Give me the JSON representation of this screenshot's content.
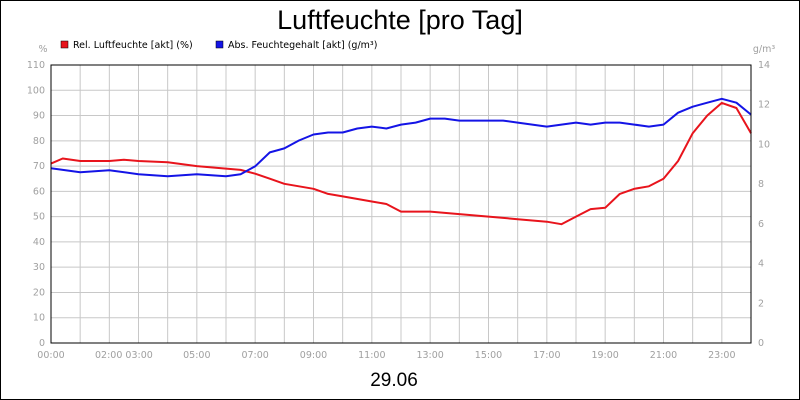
{
  "colors": {
    "rel_humidity": "#e8141c",
    "abs_humidity": "#1414e6",
    "grid": "#c8c8c8",
    "axis_text": "#a0a0a0"
  },
  "chart_data": {
    "type": "line",
    "title": "Luftfeuchte [pro Tag]",
    "date_label": "29.06",
    "left_unit": "%",
    "right_unit": "g/m³",
    "legend_position": "top-left",
    "grid": true,
    "x_ticks": [
      "00:00",
      "02:00 03:00",
      "05:00",
      "07:00",
      "09:00",
      "11:00",
      "13:00",
      "15:00",
      "17:00",
      "19:00",
      "21:00",
      "23:00"
    ],
    "x_tick_hours": [
      0,
      3,
      5,
      7,
      9,
      11,
      13,
      15,
      17,
      19,
      21,
      23
    ],
    "xlim": [
      0,
      24
    ],
    "y_left": {
      "lim": [
        0,
        110
      ],
      "ticks": [
        "0",
        "10",
        "20",
        "30",
        "40",
        "50",
        "60",
        "70",
        "80",
        "90",
        "100",
        "110"
      ]
    },
    "y_right": {
      "lim": [
        0,
        14
      ],
      "ticks": [
        "0",
        "2",
        "4",
        "6",
        "8",
        "10",
        "12",
        "14"
      ]
    },
    "series": [
      {
        "name": "Rel. Luftfeuchte [akt] (%)",
        "axis": "left",
        "points": [
          [
            0,
            71
          ],
          [
            0.4,
            73
          ],
          [
            1,
            72
          ],
          [
            2,
            72
          ],
          [
            2.5,
            72.5
          ],
          [
            3,
            72
          ],
          [
            4,
            71.5
          ],
          [
            5,
            70
          ],
          [
            6,
            69
          ],
          [
            6.5,
            68.5
          ],
          [
            7,
            67
          ],
          [
            7.5,
            65
          ],
          [
            8,
            63
          ],
          [
            8.5,
            62
          ],
          [
            9,
            61
          ],
          [
            9.5,
            59
          ],
          [
            10,
            58
          ],
          [
            11,
            56
          ],
          [
            11.5,
            55
          ],
          [
            12,
            52
          ],
          [
            12.5,
            52
          ],
          [
            13,
            52
          ],
          [
            14,
            51
          ],
          [
            15,
            50
          ],
          [
            16,
            49
          ],
          [
            17,
            48
          ],
          [
            17.5,
            47
          ],
          [
            18,
            50
          ],
          [
            18.5,
            53
          ],
          [
            19,
            53.5
          ],
          [
            19.5,
            59
          ],
          [
            20,
            61
          ],
          [
            20.5,
            62
          ],
          [
            21,
            65
          ],
          [
            21.5,
            72
          ],
          [
            22,
            83
          ],
          [
            22.5,
            90
          ],
          [
            23,
            95
          ],
          [
            23.5,
            93
          ],
          [
            24,
            83
          ]
        ]
      },
      {
        "name": "Abs. Feuchtegehalt [akt] (g/m³)",
        "axis": "right",
        "points": [
          [
            0,
            8.8
          ],
          [
            1,
            8.6
          ],
          [
            2,
            8.7
          ],
          [
            3,
            8.5
          ],
          [
            4,
            8.4
          ],
          [
            5,
            8.5
          ],
          [
            6,
            8.4
          ],
          [
            6.5,
            8.5
          ],
          [
            7,
            8.9
          ],
          [
            7.5,
            9.6
          ],
          [
            8,
            9.8
          ],
          [
            8.5,
            10.2
          ],
          [
            9,
            10.5
          ],
          [
            9.5,
            10.6
          ],
          [
            10,
            10.6
          ],
          [
            10.5,
            10.8
          ],
          [
            11,
            10.9
          ],
          [
            11.5,
            10.8
          ],
          [
            12,
            11.0
          ],
          [
            12.5,
            11.1
          ],
          [
            13,
            11.3
          ],
          [
            13.5,
            11.3
          ],
          [
            14,
            11.2
          ],
          [
            14.5,
            11.2
          ],
          [
            15,
            11.2
          ],
          [
            15.5,
            11.2
          ],
          [
            16,
            11.1
          ],
          [
            16.5,
            11.0
          ],
          [
            17,
            10.9
          ],
          [
            17.5,
            11.0
          ],
          [
            18,
            11.1
          ],
          [
            18.5,
            11.0
          ],
          [
            19,
            11.1
          ],
          [
            19.5,
            11.1
          ],
          [
            20,
            11.0
          ],
          [
            20.5,
            10.9
          ],
          [
            21,
            11.0
          ],
          [
            21.5,
            11.6
          ],
          [
            22,
            11.9
          ],
          [
            22.5,
            12.1
          ],
          [
            23,
            12.3
          ],
          [
            23.5,
            12.1
          ],
          [
            24,
            11.5
          ]
        ]
      }
    ]
  }
}
